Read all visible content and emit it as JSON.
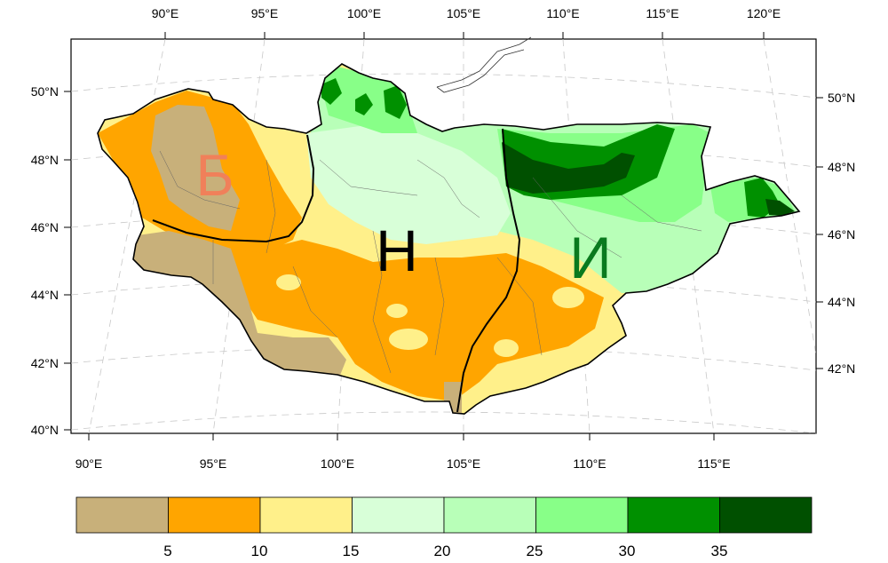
{
  "map": {
    "top_axis_labels": [
      "90°E",
      "95°E",
      "100°E",
      "105°E",
      "110°E",
      "115°E",
      "120°E"
    ],
    "bottom_axis_labels": [
      "90°E",
      "95°E",
      "100°E",
      "105°E",
      "110°E",
      "115°E"
    ],
    "left_axis_labels": [
      "50°N",
      "48°N",
      "46°N",
      "44°N",
      "42°N",
      "40°N"
    ],
    "right_axis_labels": [
      "50°N",
      "48°N",
      "46°N",
      "44°N",
      "42°N"
    ],
    "region_labels": [
      {
        "id": "west",
        "text": "Б",
        "color": "#f0805a"
      },
      {
        "id": "central",
        "text": "Н",
        "color": "#000000"
      },
      {
        "id": "east",
        "text": "И",
        "color": "#0a7a1e"
      }
    ]
  },
  "colorbar": {
    "tick_labels": [
      "5",
      "10",
      "15",
      "20",
      "25",
      "30",
      "35"
    ],
    "colors": [
      "#c8b07a",
      "#ffa500",
      "#fff08a",
      "#d8ffd8",
      "#b8ffb8",
      "#88ff88",
      "#009000",
      "#005000"
    ]
  }
}
